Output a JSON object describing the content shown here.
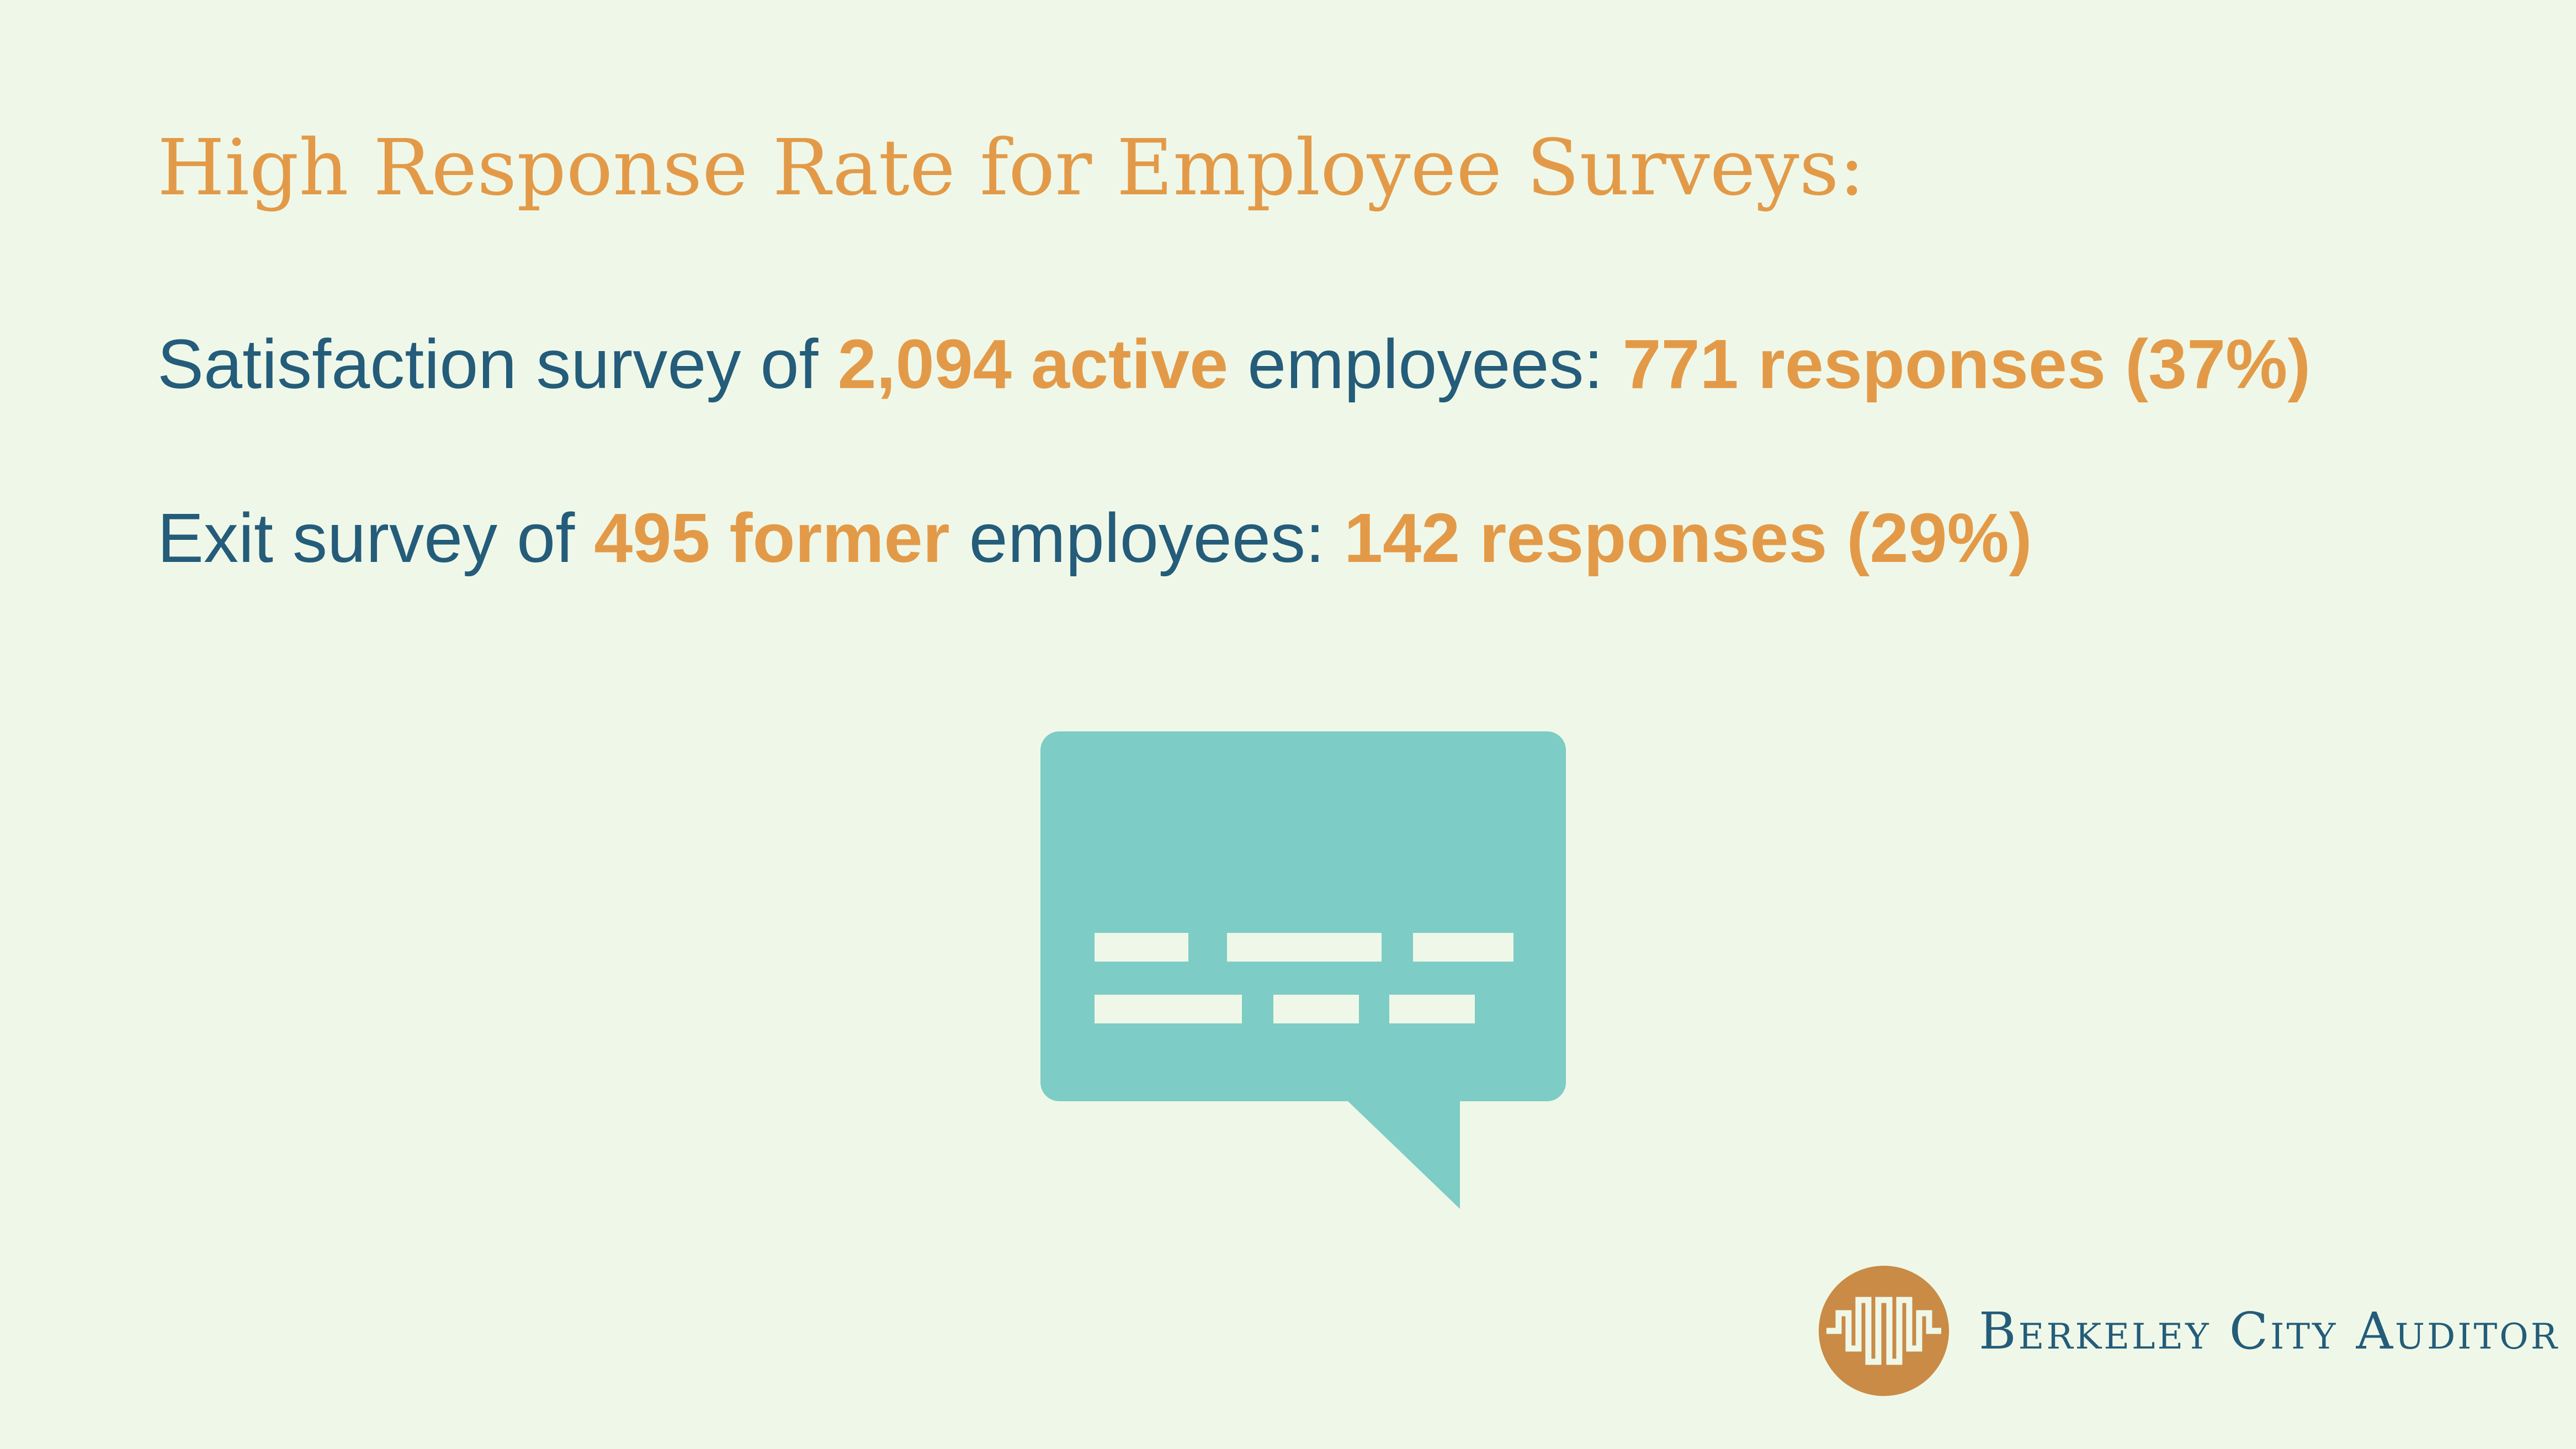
{
  "slide": {
    "title": "High Response Rate for Employee Surveys:",
    "lines": [
      {
        "segments": [
          {
            "text": "Satisfaction survey of ",
            "highlight": false
          },
          {
            "text": "2,094 active",
            "highlight": true
          },
          {
            "text": " employees: ",
            "highlight": false
          },
          {
            "text": "771 responses (37%)",
            "highlight": true
          }
        ]
      },
      {
        "segments": [
          {
            "text": "Exit survey of ",
            "highlight": false
          },
          {
            "text": "495 former",
            "highlight": true
          },
          {
            "text": " employees: ",
            "highlight": false
          },
          {
            "text": "142 responses (29%)",
            "highlight": true
          }
        ]
      }
    ],
    "icon": "speech-bubble-icon",
    "brand": "Berkeley City Auditor",
    "logo_icon": "berkeley-city-auditor-logo-icon"
  },
  "colors": {
    "background": "#eff8e8",
    "accent": "#e39a48",
    "text": "#245c7a",
    "bubble": "#7dccc5",
    "logo": "#c98b46"
  }
}
